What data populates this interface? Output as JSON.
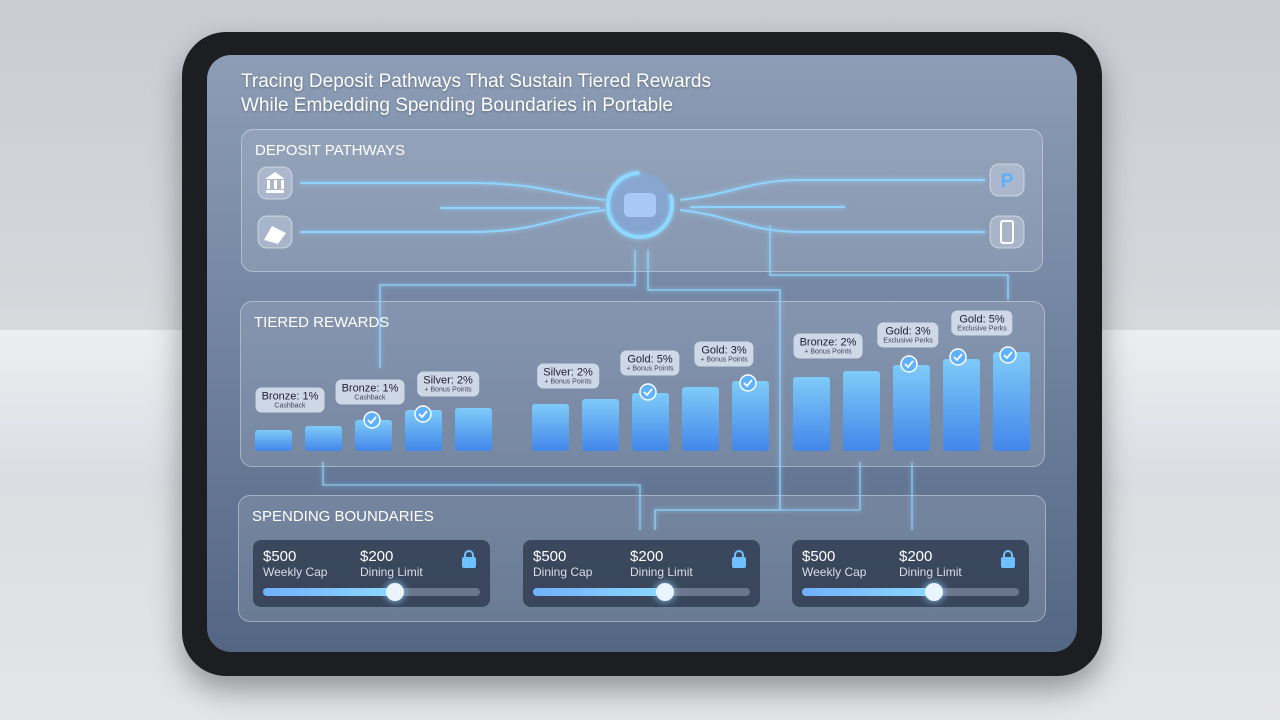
{
  "header": {
    "title_lines": [
      "Tracing Deposit Pathways That Sustain Tiered Rewards",
      "While Embedding Spending Boundaries in Portable"
    ]
  },
  "sections": {
    "deposit": "DEPOSIT PATHWAYS",
    "rewards": "TIERED REWARDS",
    "spending": "SPENDING BOUNDARIES"
  },
  "tiers": [
    {
      "title": "Bronze: 1%",
      "note": "Cashback"
    },
    {
      "title": "Bronze: 1%",
      "note": "Cashback"
    },
    {
      "title": "Silver: 2%",
      "note": "+ Bonus Points"
    },
    {
      "title": "Silver: 2%",
      "note": "+ Bonus Points"
    },
    {
      "title": "Gold: 5%",
      "note": "+ Bonus Points"
    },
    {
      "title": "Gold: 3%",
      "note": "+ Bonus Points"
    },
    {
      "title": "Bronze: 2%",
      "note": "+ Bonus Points"
    },
    {
      "title": "Gold: 3%",
      "note": "Exclusive Perks"
    },
    {
      "title": "Gold: 5%",
      "note": "Exclusive Perks"
    }
  ],
  "cards": [
    {
      "amount1": "$500",
      "label1": "Weekly Cap",
      "amount2": "$200",
      "label2": "Dining Limit"
    },
    {
      "amount1": "$500",
      "label1": "Dining Cap",
      "amount2": "$200",
      "label2": "Dining Limit"
    },
    {
      "amount1": "$500",
      "label1": "Weekly Cap",
      "amount2": "$200",
      "label2": "Dining Limit"
    }
  ]
}
